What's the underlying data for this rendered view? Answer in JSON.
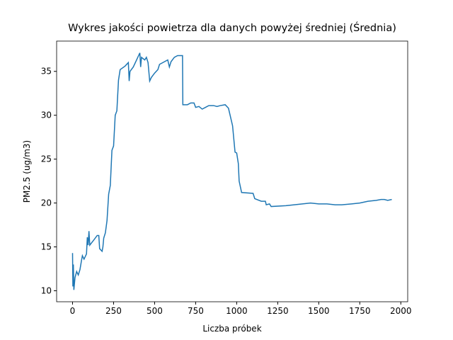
{
  "chart_data": {
    "type": "line",
    "title": "Wykres jakości powietrza dla danych powyżej średniej (Średnia)",
    "x_label": "Liczba próbek",
    "y_label": "PM2.5 (ug/m3)",
    "x": [
      0,
      2,
      5,
      8,
      15,
      25,
      35,
      45,
      55,
      60,
      70,
      80,
      85,
      90,
      95,
      100,
      105,
      130,
      150,
      160,
      165,
      180,
      185,
      190,
      200,
      210,
      220,
      230,
      240,
      250,
      260,
      270,
      280,
      290,
      320,
      340,
      345,
      350,
      370,
      390,
      400,
      410,
      415,
      420,
      440,
      450,
      460,
      470,
      480,
      500,
      520,
      530,
      560,
      580,
      590,
      600,
      620,
      640,
      670,
      672,
      700,
      720,
      740,
      750,
      770,
      790,
      810,
      830,
      860,
      880,
      900,
      930,
      950,
      960,
      975,
      990,
      1000,
      1010,
      1015,
      1030,
      1100,
      1110,
      1150,
      1175,
      1180,
      1200,
      1210,
      1300,
      1350,
      1400,
      1450,
      1500,
      1550,
      1600,
      1640,
      1700,
      1750,
      1800,
      1850,
      1880,
      1900,
      1920,
      1945
    ],
    "series": [
      {
        "name": "PM2.5",
        "color": "#1f77b4",
        "values": [
          14.3,
          10.5,
          13,
          10.1,
          11.5,
          12.2,
          11.8,
          12.4,
          13.5,
          14,
          13.6,
          14,
          14.2,
          16.1,
          15.2,
          16.8,
          15.2,
          15.8,
          16.3,
          16.3,
          14.8,
          14.5,
          15,
          16,
          16.6,
          18,
          21,
          22,
          26,
          26.5,
          30,
          30.5,
          34,
          35.2,
          35.6,
          36,
          33.9,
          35,
          35.5,
          36.3,
          36.7,
          37.1,
          35.5,
          36.6,
          36.3,
          36.6,
          36,
          33.9,
          34.3,
          34.8,
          35.2,
          35.8,
          36.1,
          36.3,
          35.5,
          36.1,
          36.6,
          36.8,
          36.8,
          31.2,
          31.2,
          31.4,
          31.4,
          30.9,
          31,
          30.7,
          30.9,
          31.1,
          31.1,
          31,
          31.1,
          31.2,
          30.8,
          30,
          28.8,
          25.8,
          25.7,
          24.5,
          22.5,
          21.2,
          21.1,
          20.5,
          20.2,
          20.2,
          19.8,
          19.9,
          19.6,
          19.7,
          19.8,
          19.9,
          20,
          19.9,
          19.9,
          19.8,
          19.8,
          19.9,
          20,
          20.2,
          20.3,
          20.4,
          20.4,
          20.3,
          20.4
        ]
      }
    ],
    "xlim": [
      -97,
      2042
    ],
    "ylim": [
      8.75,
      38.45
    ],
    "xticks": [
      0,
      250,
      500,
      750,
      1000,
      1250,
      1500,
      1750,
      2000
    ],
    "yticks": [
      10,
      15,
      20,
      25,
      30,
      35
    ]
  }
}
